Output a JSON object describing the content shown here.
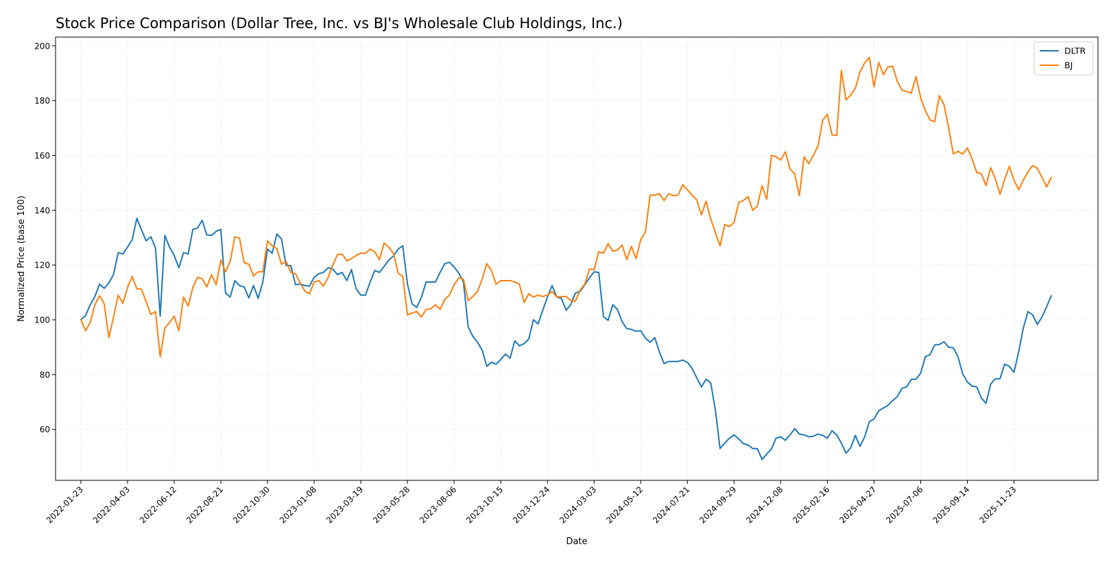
{
  "chart_data": {
    "type": "line",
    "title": "Stock Price Comparison (Dollar Tree, Inc. vs BJ's Wholesale Club Holdings, Inc.)",
    "xlabel": "Date",
    "ylabel": "Normalized Price (base 100)",
    "x_start": "2022-01-23",
    "x_step_days": 7,
    "xlim": [
      "2021-12-16",
      "2026-03-29"
    ],
    "ylim": [
      41.4,
      203.2
    ],
    "xticks": [
      "2022-01-23",
      "2022-04-03",
      "2022-06-12",
      "2022-08-21",
      "2022-10-30",
      "2023-01-08",
      "2023-03-19",
      "2023-05-28",
      "2023-08-06",
      "2023-10-15",
      "2023-12-24",
      "2024-03-03",
      "2024-05-12",
      "2024-07-21",
      "2024-09-29",
      "2024-12-08",
      "2025-02-16",
      "2025-04-27",
      "2025-07-06",
      "2025-09-14",
      "2025-11-23"
    ],
    "yticks": [
      60,
      80,
      100,
      120,
      140,
      160,
      180,
      200
    ],
    "grid": true,
    "legend": "top-right",
    "colors": {
      "DLTR": "#1f77b4",
      "BJ": "#ff7f0e"
    },
    "series": [
      {
        "name": "DLTR",
        "color": "#1f77b4",
        "values": [
          100,
          101.5,
          105.5,
          108.5,
          113,
          111.5,
          113.5,
          116.5,
          124.5,
          124,
          126.5,
          129.3,
          137,
          132.8,
          128.8,
          130.3,
          126.2,
          101.3,
          130.8,
          126.5,
          123.5,
          119,
          124.5,
          124,
          133,
          133.5,
          136.3,
          131,
          130.8,
          132.3,
          133,
          109.8,
          108.3,
          114.3,
          112.5,
          112,
          108,
          112.5,
          107.8,
          113.8,
          125.8,
          124.3,
          131.3,
          129.5,
          119.8,
          119.8,
          112.8,
          113,
          112.5,
          112.3,
          115.5,
          116.8,
          117.3,
          119,
          118.5,
          116.5,
          117.3,
          114.3,
          118.3,
          111.3,
          109,
          109,
          113.8,
          118,
          117.3,
          119.5,
          121.8,
          123.3,
          125.8,
          127,
          113,
          105.8,
          104.5,
          108.3,
          113.8,
          113.8,
          113.8,
          117.3,
          120.5,
          121,
          119.3,
          117,
          113.8,
          97.5,
          94,
          91.8,
          89,
          83,
          84.5,
          83.8,
          85.5,
          87.5,
          86,
          92.3,
          90.5,
          91.3,
          93,
          100,
          98.5,
          103.5,
          108.3,
          112.5,
          108.3,
          107.8,
          103.5,
          105.5,
          109.8,
          110.3,
          112.8,
          115.3,
          117.5,
          117.3,
          101.2,
          99.8,
          105.5,
          103.8,
          99.3,
          96.8,
          96.5,
          95.8,
          96,
          93.3,
          91.8,
          93.5,
          88.3,
          84,
          84.8,
          84.8,
          84.8,
          85.3,
          84.5,
          82.3,
          78.8,
          75.5,
          78.3,
          77,
          67,
          53,
          55,
          56.8,
          58,
          56.5,
          54.8,
          54.3,
          53,
          53,
          49,
          51,
          52.8,
          56.8,
          57.3,
          56,
          58,
          60.3,
          58.3,
          58,
          57.3,
          57.5,
          58.3,
          57.8,
          56.8,
          59.5,
          58,
          55,
          51.3,
          53.3,
          57.8,
          53.8,
          57.3,
          62.8,
          63.8,
          66.8,
          67.8,
          68.8,
          70.5,
          72,
          75,
          75.5,
          78.3,
          78.3,
          80.5,
          86.5,
          87.3,
          90.8,
          91,
          92,
          90,
          89.8,
          86.5,
          80.3,
          77.3,
          75.8,
          75.5,
          71.5,
          69.5,
          76.5,
          78.5,
          78.5,
          83.8,
          83,
          80.8,
          88.3,
          97,
          103,
          101.8,
          98.3,
          101,
          104.8,
          108.8
        ]
      },
      {
        "name": "BJ",
        "color": "#ff7f0e",
        "values": [
          100,
          96,
          99,
          105.5,
          108.8,
          105.8,
          93.5,
          101,
          109,
          106,
          111.8,
          115.8,
          111.3,
          111.2,
          106.5,
          102,
          103,
          86.5,
          97,
          99,
          101.3,
          96,
          108.3,
          105,
          111.8,
          115.5,
          115,
          112,
          116.5,
          112.8,
          121.8,
          117.5,
          121.3,
          130.3,
          129.8,
          120.8,
          120.3,
          116,
          117.5,
          117.5,
          128.8,
          127,
          126,
          120.3,
          121.3,
          117.3,
          116.8,
          113.5,
          110.5,
          109.5,
          113.8,
          114.3,
          112.3,
          115.5,
          120,
          123.8,
          124,
          121.5,
          122.3,
          123.5,
          124.3,
          124.3,
          125.8,
          124.8,
          122,
          128,
          126.5,
          124.3,
          117,
          115.8,
          101.8,
          102.5,
          103,
          101,
          103.8,
          104,
          105.5,
          103.8,
          107.5,
          109,
          112.8,
          115.3,
          114.8,
          107,
          108.5,
          110.3,
          114.8,
          120.5,
          118,
          113,
          114.3,
          114.3,
          114.3,
          113.8,
          113,
          106.3,
          109.5,
          108.3,
          109,
          108.5,
          109,
          110.3,
          108.3,
          108.5,
          108.5,
          107,
          106.8,
          110.8,
          113,
          118.5,
          118.3,
          124.8,
          124.3,
          127.8,
          125,
          125.5,
          127.3,
          122,
          126.8,
          122.3,
          129.3,
          132,
          145.5,
          145.5,
          146,
          143.5,
          146,
          145.3,
          145.5,
          149.3,
          147.5,
          145.5,
          143.8,
          138.3,
          143.3,
          136.8,
          131.8,
          127,
          134.8,
          134,
          135.5,
          142.8,
          143.5,
          145,
          140,
          141.5,
          149,
          144,
          160,
          159.5,
          158.3,
          161.3,
          155,
          153.3,
          145.3,
          159.5,
          157,
          160,
          163.5,
          172.8,
          175,
          167.5,
          167.3,
          191,
          180.3,
          182,
          184.5,
          190.5,
          193.8,
          195.8,
          185,
          194,
          189.5,
          192.3,
          192.5,
          187,
          183.8,
          183.3,
          182.8,
          188.8,
          181,
          176.3,
          173,
          172.3,
          181.8,
          178.5,
          170,
          160.5,
          161.5,
          160.5,
          162.8,
          158.8,
          153.8,
          153.3,
          149,
          155.5,
          151.5,
          145.8,
          151.3,
          156,
          151,
          147.5,
          151,
          154,
          156.3,
          155.3,
          152,
          148.5,
          152
        ]
      }
    ]
  }
}
